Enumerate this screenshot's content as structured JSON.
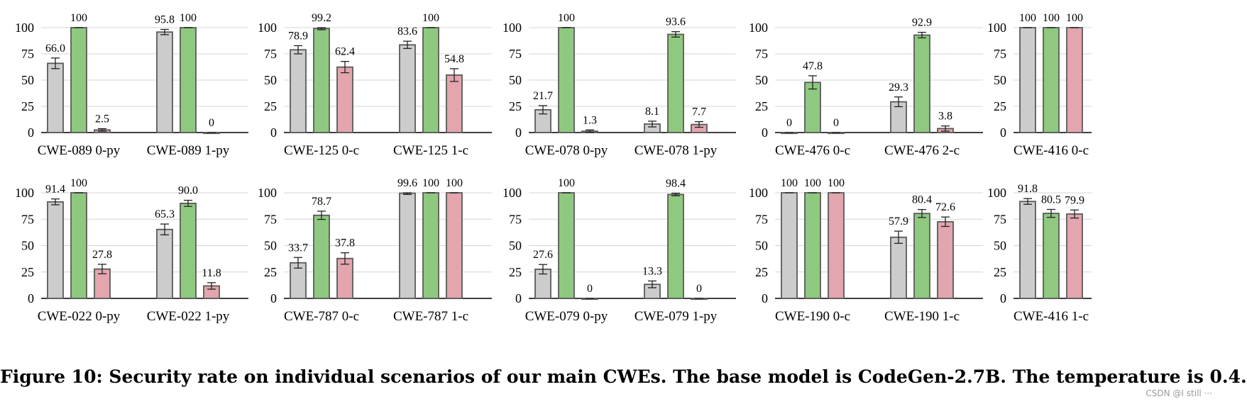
{
  "chart_data": [
    {
      "type": "bar",
      "legend": "none",
      "ylim": [
        0,
        100
      ],
      "yticks": [
        0,
        25,
        50,
        75,
        100
      ],
      "grid": true,
      "groups": [
        {
          "label": "CWE-089 0-py",
          "values": [
            66.0,
            100,
            2.5
          ],
          "value_labels": [
            "66.0",
            "100",
            "2.5"
          ]
        },
        {
          "label": "CWE-089 1-py",
          "values": [
            95.8,
            100,
            0
          ],
          "value_labels": [
            "95.8",
            "100",
            "0"
          ]
        }
      ]
    },
    {
      "type": "bar",
      "legend": "none",
      "ylim": [
        0,
        100
      ],
      "yticks": [
        0,
        25,
        50,
        75,
        100
      ],
      "grid": true,
      "groups": [
        {
          "label": "CWE-125 0-c",
          "values": [
            78.9,
            99.2,
            62.4
          ],
          "value_labels": [
            "78.9",
            "99.2",
            "62.4"
          ]
        },
        {
          "label": "CWE-125 1-c",
          "values": [
            83.6,
            100,
            54.8
          ],
          "value_labels": [
            "83.6",
            "100",
            "54.8"
          ]
        }
      ]
    },
    {
      "type": "bar",
      "legend": "none",
      "ylim": [
        0,
        100
      ],
      "yticks": [
        0,
        25,
        50,
        75,
        100
      ],
      "grid": true,
      "groups": [
        {
          "label": "CWE-078 0-py",
          "values": [
            21.7,
            100,
            1.3
          ],
          "value_labels": [
            "21.7",
            "100",
            "1.3"
          ]
        },
        {
          "label": "CWE-078 1-py",
          "values": [
            8.1,
            93.6,
            7.7
          ],
          "value_labels": [
            "8.1",
            "93.6",
            "7.7"
          ]
        }
      ]
    },
    {
      "type": "bar",
      "legend": "none",
      "ylim": [
        0,
        100
      ],
      "yticks": [
        0,
        25,
        50,
        75,
        100
      ],
      "grid": true,
      "groups": [
        {
          "label": "CWE-476 0-c",
          "values": [
            0,
            47.8,
            0
          ],
          "value_labels": [
            "0",
            "47.8",
            "0"
          ]
        },
        {
          "label": "CWE-476 2-c",
          "values": [
            29.3,
            92.9,
            3.8
          ],
          "value_labels": [
            "29.3",
            "92.9",
            "3.8"
          ]
        }
      ]
    },
    {
      "type": "bar",
      "legend": "none",
      "ylim": [
        0,
        100
      ],
      "yticks": [
        0,
        25,
        50,
        75,
        100
      ],
      "grid": true,
      "groups": [
        {
          "label": "CWE-416 0-c",
          "values": [
            100,
            100,
            100
          ],
          "value_labels": [
            "100",
            "100",
            "100"
          ]
        }
      ]
    },
    {
      "type": "bar",
      "legend": "none",
      "ylim": [
        0,
        100
      ],
      "yticks": [
        0,
        25,
        50,
        75,
        100
      ],
      "grid": true,
      "groups": [
        {
          "label": "CWE-022 0-py",
          "values": [
            91.4,
            100,
            27.8
          ],
          "value_labels": [
            "91.4",
            "100",
            "27.8"
          ]
        },
        {
          "label": "CWE-022 1-py",
          "values": [
            65.3,
            90.0,
            11.8
          ],
          "value_labels": [
            "65.3",
            "90.0",
            "11.8"
          ]
        }
      ]
    },
    {
      "type": "bar",
      "legend": "none",
      "ylim": [
        0,
        100
      ],
      "yticks": [
        0,
        25,
        50,
        75,
        100
      ],
      "grid": true,
      "groups": [
        {
          "label": "CWE-787 0-c",
          "values": [
            33.7,
            78.7,
            37.8
          ],
          "value_labels": [
            "33.7",
            "78.7",
            "37.8"
          ]
        },
        {
          "label": "CWE-787 1-c",
          "values": [
            99.6,
            100,
            100
          ],
          "value_labels": [
            "99.6",
            "100",
            "100"
          ]
        }
      ]
    },
    {
      "type": "bar",
      "legend": "none",
      "ylim": [
        0,
        100
      ],
      "yticks": [
        0,
        25,
        50,
        75,
        100
      ],
      "grid": true,
      "groups": [
        {
          "label": "CWE-079 0-py",
          "values": [
            27.6,
            100,
            0
          ],
          "value_labels": [
            "27.6",
            "100",
            "0"
          ]
        },
        {
          "label": "CWE-079 1-py",
          "values": [
            13.3,
            98.4,
            0
          ],
          "value_labels": [
            "13.3",
            "98.4",
            "0"
          ]
        }
      ]
    },
    {
      "type": "bar",
      "legend": "none",
      "ylim": [
        0,
        100
      ],
      "yticks": [
        0,
        25,
        50,
        75,
        100
      ],
      "grid": true,
      "groups": [
        {
          "label": "CWE-190 0-c",
          "values": [
            100,
            100,
            100
          ],
          "value_labels": [
            "100",
            "100",
            "100"
          ]
        },
        {
          "label": "CWE-190 1-c",
          "values": [
            57.9,
            80.4,
            72.6
          ],
          "value_labels": [
            "57.9",
            "80.4",
            "72.6"
          ]
        }
      ]
    },
    {
      "type": "bar",
      "legend": "none",
      "ylim": [
        0,
        100
      ],
      "yticks": [
        0,
        25,
        50,
        75,
        100
      ],
      "grid": true,
      "groups": [
        {
          "label": "CWE-416 1-c",
          "values": [
            91.8,
            80.5,
            79.9
          ],
          "value_labels": [
            "91.8",
            "80.5",
            "79.9"
          ]
        }
      ]
    }
  ],
  "colors": {
    "bar1": "#cccccc",
    "bar2": "#8fc97f",
    "bar3": "#e3a5ae",
    "stroke": "#5a5a5a",
    "grid": "#d4d4d4",
    "axis": "#000000"
  },
  "caption": "Figure 10: Security rate on individual scenarios of our main CWEs. The base model is CodeGen-2.7B. The temperature is 0.4.",
  "watermark": "CSDN @I still ···"
}
